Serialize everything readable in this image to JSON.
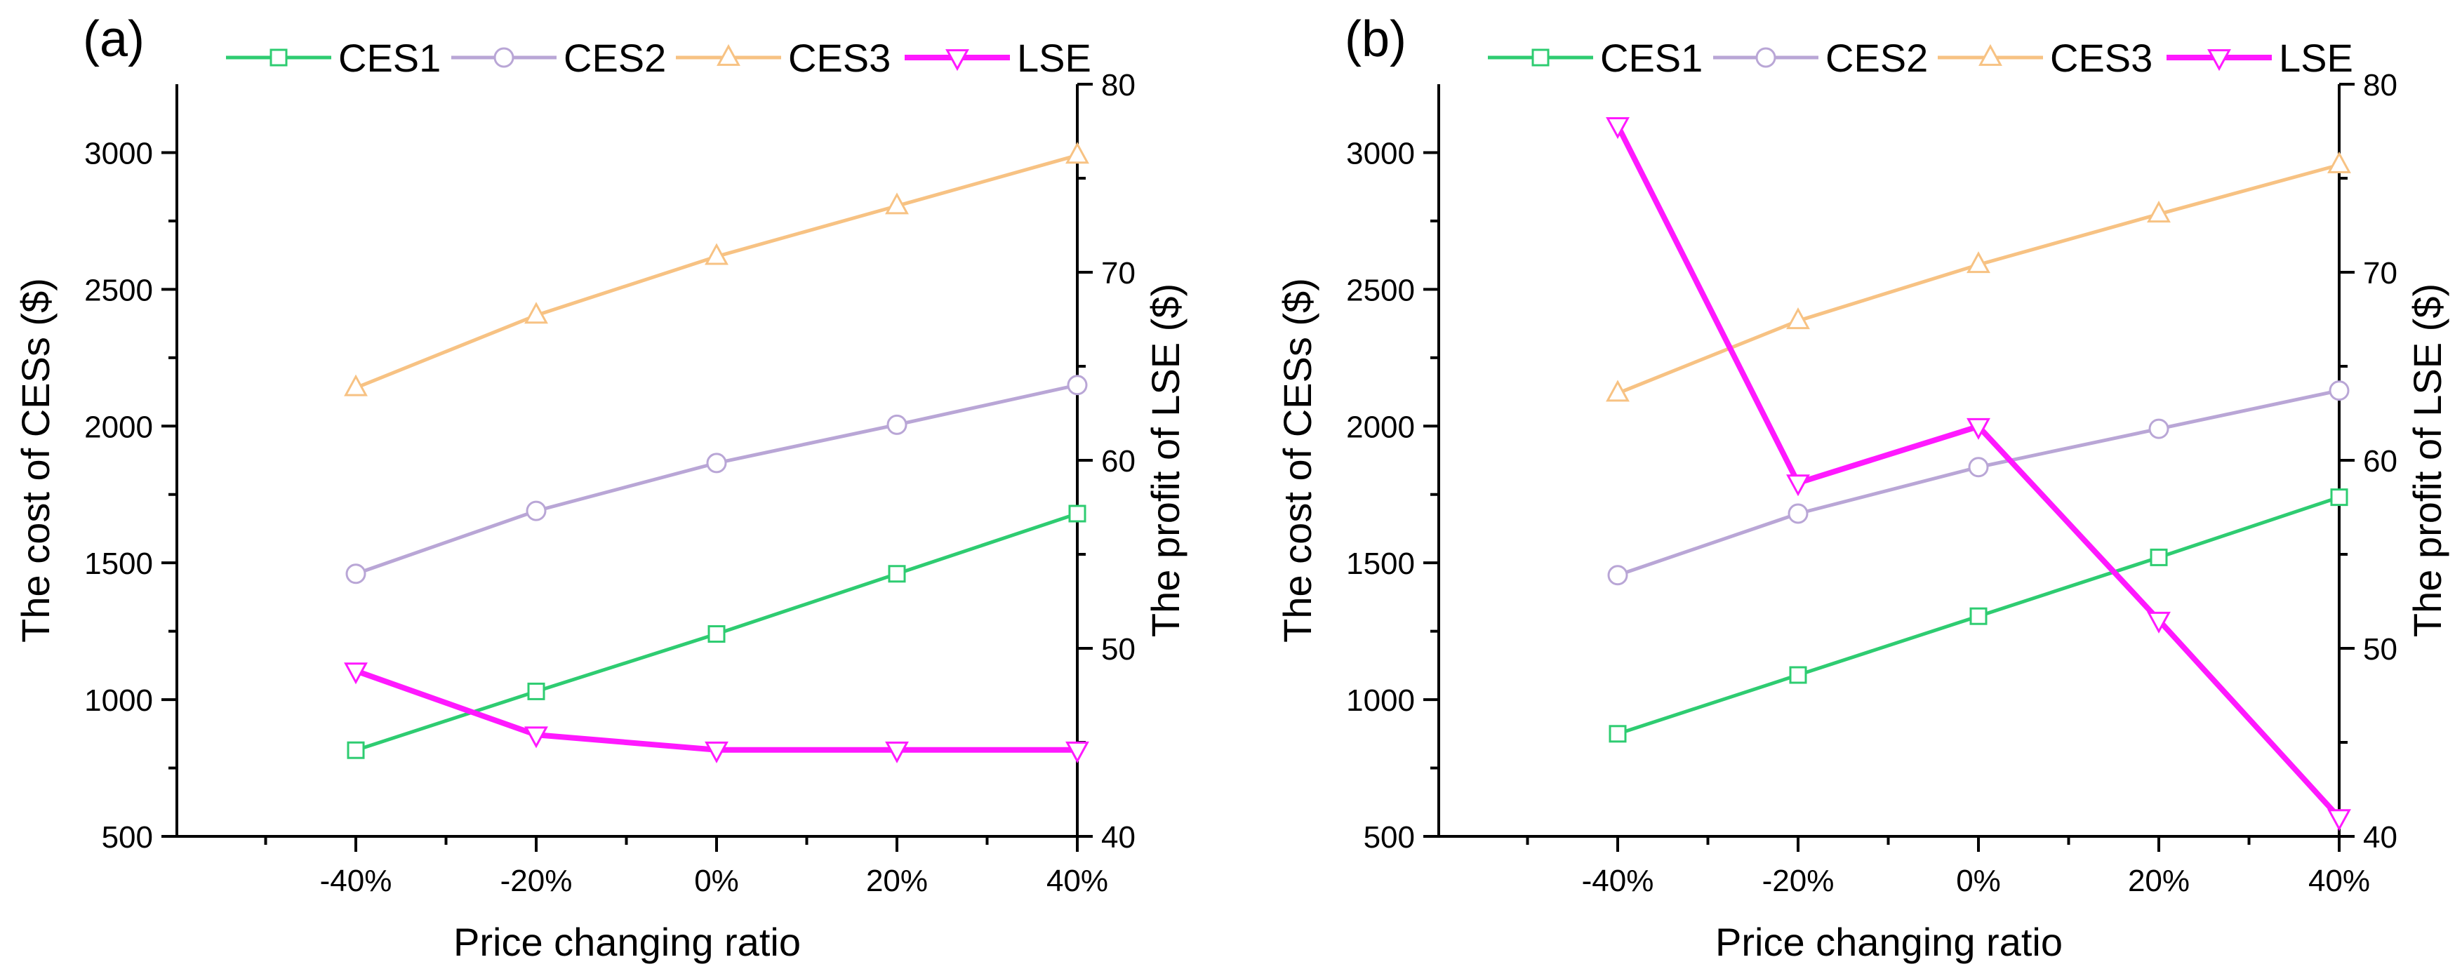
{
  "chart_data": [
    {
      "panel_label": "(a)",
      "type": "line",
      "xlabel": "Price changing ratio",
      "ylabel_left": "The cost of CESs ($)",
      "ylabel_right": "The profit of LSE ($)",
      "categories": [
        "-40%",
        "-20%",
        "0%",
        "20%",
        "40%"
      ],
      "ylim_left": [
        500,
        3250
      ],
      "yticks_left": [
        500,
        1000,
        1500,
        2000,
        2500,
        3000
      ],
      "ylim_right": [
        40,
        80
      ],
      "yticks_right": [
        40,
        50,
        60,
        70,
        80
      ],
      "legend_position": "top",
      "grid": false,
      "series": [
        {
          "name": "CES1",
          "axis": "left",
          "marker": "square",
          "color": "#2ecc71",
          "values": [
            815,
            1030,
            1240,
            1460,
            1680
          ]
        },
        {
          "name": "CES2",
          "axis": "left",
          "marker": "circle",
          "color": "#b9a6d6",
          "values": [
            1460,
            1690,
            1865,
            2005,
            2150
          ]
        },
        {
          "name": "CES3",
          "axis": "left",
          "marker": "triangle-up",
          "color": "#f7c283",
          "values": [
            2140,
            2405,
            2620,
            2805,
            2990
          ]
        },
        {
          "name": "LSE",
          "axis": "right",
          "marker": "triangle-down",
          "color": "#ff19ff",
          "values": [
            48.8,
            45.4,
            44.6,
            44.6,
            44.6
          ]
        }
      ]
    },
    {
      "panel_label": "(b)",
      "type": "line",
      "xlabel": "Price changing ratio",
      "ylabel_left": "The cost of CESs ($)",
      "ylabel_right": "The profit of LSE ($)",
      "categories": [
        "-40%",
        "-20%",
        "0%",
        "20%",
        "40%"
      ],
      "ylim_left": [
        500,
        3250
      ],
      "yticks_left": [
        500,
        1000,
        1500,
        2000,
        2500,
        3000
      ],
      "ylim_right": [
        40,
        80
      ],
      "yticks_right": [
        40,
        50,
        60,
        70,
        80
      ],
      "legend_position": "top",
      "grid": false,
      "series": [
        {
          "name": "CES1",
          "axis": "left",
          "marker": "square",
          "color": "#2ecc71",
          "values": [
            875,
            1090,
            1305,
            1520,
            1740
          ]
        },
        {
          "name": "CES2",
          "axis": "left",
          "marker": "circle",
          "color": "#b9a6d6",
          "values": [
            1455,
            1680,
            1850,
            1990,
            2130
          ]
        },
        {
          "name": "CES3",
          "axis": "left",
          "marker": "triangle-up",
          "color": "#f7c283",
          "values": [
            2120,
            2385,
            2590,
            2775,
            2955
          ]
        },
        {
          "name": "LSE",
          "axis": "right",
          "marker": "triangle-down",
          "color": "#ff19ff",
          "values": [
            77.8,
            58.8,
            61.8,
            51.5,
            41.0
          ]
        }
      ]
    }
  ]
}
